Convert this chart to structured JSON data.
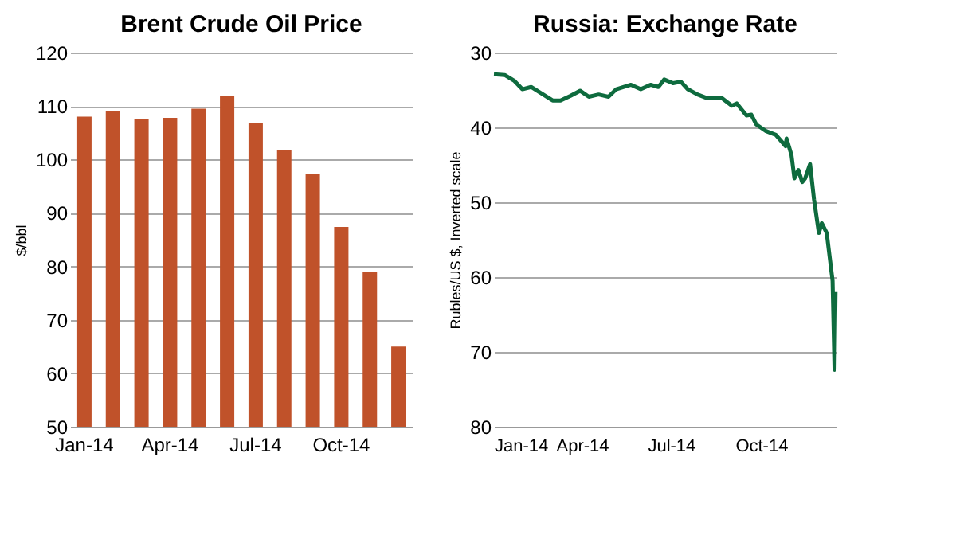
{
  "chart_data": [
    {
      "type": "bar",
      "title": "Brent Crude Oil Price",
      "ylabel": "$/bbl",
      "categories": [
        "Jan-14",
        null,
        null,
        "Apr-14",
        null,
        null,
        "Jul-14",
        null,
        null,
        "Oct-14",
        null,
        null
      ],
      "values": [
        108,
        109,
        107.5,
        107.8,
        109.5,
        111.8,
        106.8,
        101.8,
        97.3,
        87.4,
        78.9,
        65
      ],
      "color": "#c0522a",
      "ylim": [
        50,
        120
      ],
      "yticks": [
        50,
        60,
        70,
        80,
        90,
        100,
        110,
        120
      ],
      "grid": "y"
    },
    {
      "type": "line",
      "title": "Russia: Exchange Rate",
      "ylabel": "Rubles/US $, Inverted scale",
      "x": [
        "2014-01-01",
        "2014-01-12",
        "2014-01-22",
        "2014-01-30",
        "2014-02-08",
        "2014-02-18",
        "2014-03-02",
        "2014-03-10",
        "2014-03-20",
        "2014-03-30",
        "2014-04-08",
        "2014-04-18",
        "2014-04-28",
        "2014-05-06",
        "2014-05-21",
        "2014-05-31",
        "2014-06-10",
        "2014-06-18",
        "2014-06-24",
        "2014-07-03",
        "2014-07-11",
        "2014-07-18",
        "2014-07-28",
        "2014-08-07",
        "2014-08-22",
        "2014-09-01",
        "2014-09-06",
        "2014-09-16",
        "2014-09-21",
        "2014-09-26",
        "2014-10-06",
        "2014-10-16",
        "2014-10-26",
        "2014-10-27",
        "2014-11-01",
        "2014-11-04",
        "2014-11-08",
        "2014-11-12",
        "2014-11-15",
        "2014-11-20",
        "2014-11-24",
        "2014-11-29",
        "2014-12-02",
        "2014-12-07",
        "2014-12-10",
        "2014-12-13",
        "2014-12-15",
        "2014-12-16"
      ],
      "series": [
        {
          "color": "#0e6b3e",
          "values": [
            32.9,
            33.0,
            33.8,
            34.9,
            34.6,
            35.4,
            36.4,
            36.4,
            35.8,
            35.1,
            35.9,
            35.6,
            35.9,
            34.9,
            34.3,
            34.9,
            34.3,
            34.6,
            33.6,
            34.1,
            33.9,
            34.9,
            35.6,
            36.1,
            36.1,
            37.1,
            36.8,
            38.4,
            38.3,
            39.6,
            40.5,
            41.0,
            42.5,
            41.5,
            43.7,
            46.8,
            45.7,
            47.3,
            46.8,
            44.9,
            49.6,
            54.1,
            52.8,
            54.1,
            57.3,
            60.5,
            72.4,
            62.0
          ]
        }
      ],
      "xlim": [
        "2014-01-01",
        "2014-12-17"
      ],
      "xticks": [
        {
          "value": "2014-01-01",
          "label": "Jan-14"
        },
        {
          "value": "2014-04-01",
          "label": "Apr-14"
        },
        {
          "value": "2014-07-01",
          "label": "Jul-14"
        },
        {
          "value": "2014-10-01",
          "label": "Oct-14"
        }
      ],
      "ylim": [
        80,
        30
      ],
      "yticks": [
        30,
        40,
        50,
        60,
        70,
        80
      ],
      "grid": "y",
      "line_style": "solid",
      "marker": "none"
    }
  ]
}
